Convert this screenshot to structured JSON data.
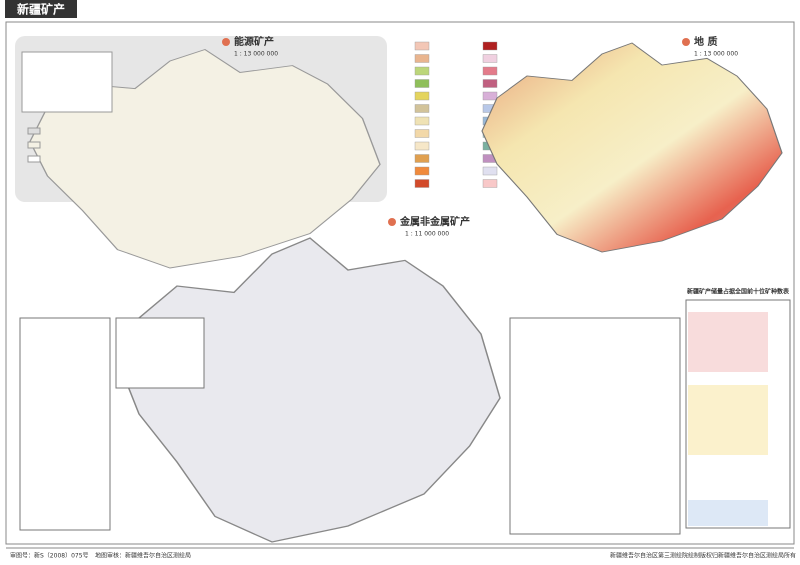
{
  "header": {
    "title": "新疆矿产"
  },
  "maps": [
    {
      "title": "能源矿产",
      "scale": "1 : 13 000 000"
    },
    {
      "title": "地 质",
      "scale": "1 : 13 000 000"
    },
    {
      "title": "金属非金属矿产",
      "scale": "1 : 11 000 000"
    }
  ],
  "table": {
    "title": "新疆矿产储量占据全国前十位矿种数表"
  },
  "footer": {
    "left": "审图号：新S（2008）075号",
    "left2": "地图审核：新疆维吾尔自治区测绘局",
    "right": "新疆维吾尔自治区第三测绘院绘制",
    "right2": "版权归新疆维吾尔自治区测绘局所有"
  }
}
